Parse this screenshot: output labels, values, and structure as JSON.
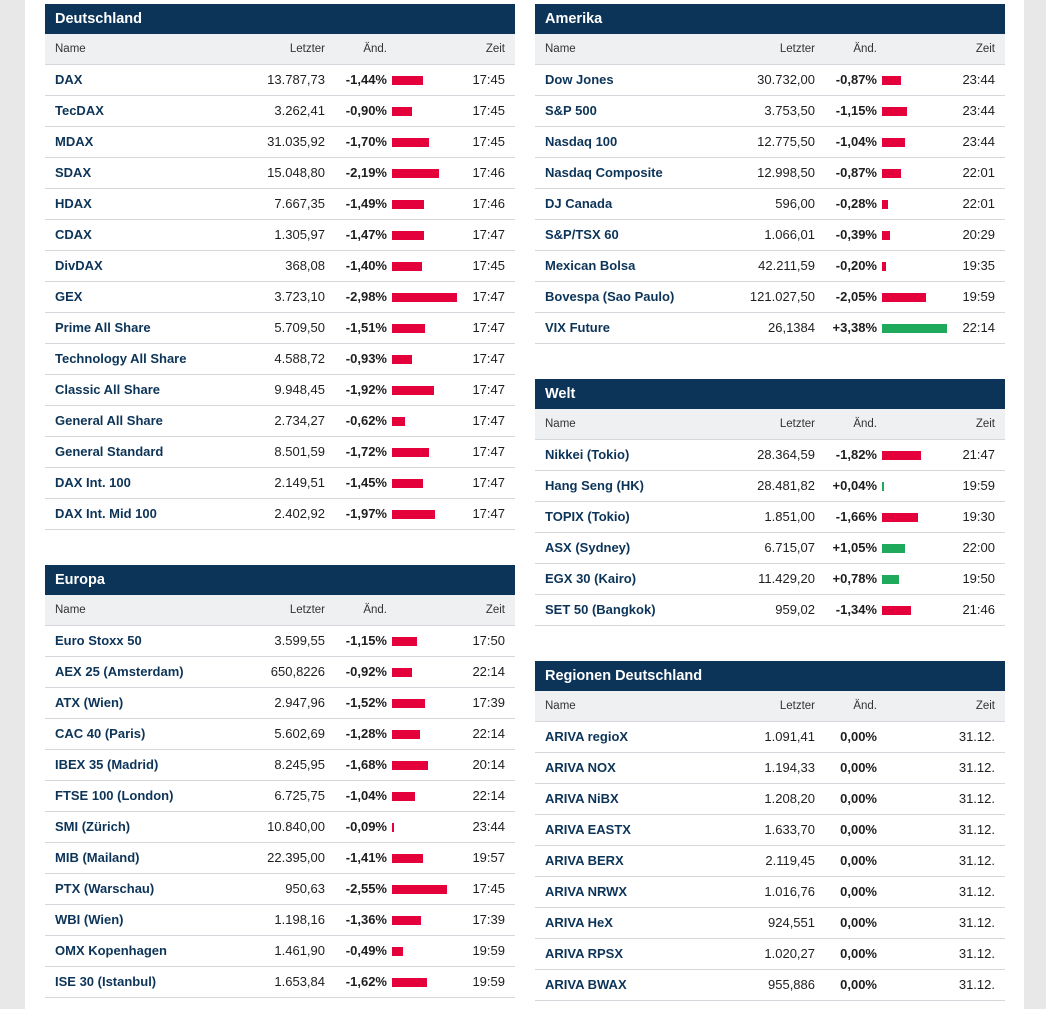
{
  "colors": {
    "header_bg": "#0c3458",
    "negative": "#e4003a",
    "positive": "#1faa5b",
    "link": "#0c3458"
  },
  "bar_scale_max_pct": 3.0,
  "panels": [
    {
      "id": "deutschland",
      "title": "Deutschland",
      "columns": {
        "name": "Name",
        "last": "Letzter",
        "change": "Änd.",
        "time": "Zeit"
      },
      "rows": [
        {
          "name": "DAX",
          "last": "13.787,73",
          "change": "-1,44%",
          "pct": -1.44,
          "time": "17:45"
        },
        {
          "name": "TecDAX",
          "last": "3.262,41",
          "change": "-0,90%",
          "pct": -0.9,
          "time": "17:45"
        },
        {
          "name": "MDAX",
          "last": "31.035,92",
          "change": "-1,70%",
          "pct": -1.7,
          "time": "17:45"
        },
        {
          "name": "SDAX",
          "last": "15.048,80",
          "change": "-2,19%",
          "pct": -2.19,
          "time": "17:46"
        },
        {
          "name": "HDAX",
          "last": "7.667,35",
          "change": "-1,49%",
          "pct": -1.49,
          "time": "17:46"
        },
        {
          "name": "CDAX",
          "last": "1.305,97",
          "change": "-1,47%",
          "pct": -1.47,
          "time": "17:47"
        },
        {
          "name": "DivDAX",
          "last": "368,08",
          "change": "-1,40%",
          "pct": -1.4,
          "time": "17:45"
        },
        {
          "name": "GEX",
          "last": "3.723,10",
          "change": "-2,98%",
          "pct": -2.98,
          "time": "17:47"
        },
        {
          "name": "Prime All Share",
          "last": "5.709,50",
          "change": "-1,51%",
          "pct": -1.51,
          "time": "17:47"
        },
        {
          "name": "Technology All Share",
          "last": "4.588,72",
          "change": "-0,93%",
          "pct": -0.93,
          "time": "17:47"
        },
        {
          "name": "Classic All Share",
          "last": "9.948,45",
          "change": "-1,92%",
          "pct": -1.92,
          "time": "17:47"
        },
        {
          "name": "General All Share",
          "last": "2.734,27",
          "change": "-0,62%",
          "pct": -0.62,
          "time": "17:47"
        },
        {
          "name": "General Standard",
          "last": "8.501,59",
          "change": "-1,72%",
          "pct": -1.72,
          "time": "17:47"
        },
        {
          "name": "DAX Int. 100",
          "last": "2.149,51",
          "change": "-1,45%",
          "pct": -1.45,
          "time": "17:47"
        },
        {
          "name": "DAX Int. Mid 100",
          "last": "2.402,92",
          "change": "-1,97%",
          "pct": -1.97,
          "time": "17:47"
        }
      ]
    },
    {
      "id": "europa",
      "title": "Europa",
      "columns": {
        "name": "Name",
        "last": "Letzter",
        "change": "Änd.",
        "time": "Zeit"
      },
      "rows": [
        {
          "name": "Euro Stoxx 50",
          "last": "3.599,55",
          "change": "-1,15%",
          "pct": -1.15,
          "time": "17:50"
        },
        {
          "name": "AEX 25 (Amsterdam)",
          "last": "650,8226",
          "change": "-0,92%",
          "pct": -0.92,
          "time": "22:14"
        },
        {
          "name": "ATX (Wien)",
          "last": "2.947,96",
          "change": "-1,52%",
          "pct": -1.52,
          "time": "17:39"
        },
        {
          "name": "CAC 40 (Paris)",
          "last": "5.602,69",
          "change": "-1,28%",
          "pct": -1.28,
          "time": "22:14"
        },
        {
          "name": "IBEX 35 (Madrid)",
          "last": "8.245,95",
          "change": "-1,68%",
          "pct": -1.68,
          "time": "20:14"
        },
        {
          "name": "FTSE 100 (London)",
          "last": "6.725,75",
          "change": "-1,04%",
          "pct": -1.04,
          "time": "22:14"
        },
        {
          "name": "SMI (Zürich)",
          "last": "10.840,00",
          "change": "-0,09%",
          "pct": -0.09,
          "time": "23:44"
        },
        {
          "name": "MIB (Mailand)",
          "last": "22.395,00",
          "change": "-1,41%",
          "pct": -1.41,
          "time": "19:57"
        },
        {
          "name": "PTX (Warschau)",
          "last": "950,63",
          "change": "-2,55%",
          "pct": -2.55,
          "time": "17:45"
        },
        {
          "name": "WBI (Wien)",
          "last": "1.198,16",
          "change": "-1,36%",
          "pct": -1.36,
          "time": "17:39"
        },
        {
          "name": "OMX Kopenhagen",
          "last": "1.461,90",
          "change": "-0,49%",
          "pct": -0.49,
          "time": "19:59"
        },
        {
          "name": "ISE 30 (Istanbul)",
          "last": "1.653,84",
          "change": "-1,62%",
          "pct": -1.62,
          "time": "19:59"
        }
      ]
    },
    {
      "id": "amerika",
      "title": "Amerika",
      "columns": {
        "name": "Name",
        "last": "Letzter",
        "change": "Änd.",
        "time": "Zeit"
      },
      "rows": [
        {
          "name": "Dow Jones",
          "last": "30.732,00",
          "change": "-0,87%",
          "pct": -0.87,
          "time": "23:44"
        },
        {
          "name": "S&P 500",
          "last": "3.753,50",
          "change": "-1,15%",
          "pct": -1.15,
          "time": "23:44"
        },
        {
          "name": "Nasdaq 100",
          "last": "12.775,50",
          "change": "-1,04%",
          "pct": -1.04,
          "time": "23:44"
        },
        {
          "name": "Nasdaq Composite",
          "last": "12.998,50",
          "change": "-0,87%",
          "pct": -0.87,
          "time": "22:01"
        },
        {
          "name": "DJ Canada",
          "last": "596,00",
          "change": "-0,28%",
          "pct": -0.28,
          "time": "22:01"
        },
        {
          "name": "S&P/TSX 60",
          "last": "1.066,01",
          "change": "-0,39%",
          "pct": -0.39,
          "time": "20:29"
        },
        {
          "name": "Mexican Bolsa",
          "last": "42.211,59",
          "change": "-0,20%",
          "pct": -0.2,
          "time": "19:35"
        },
        {
          "name": "Bovespa (Sao Paulo)",
          "last": "121.027,50",
          "change": "-2,05%",
          "pct": -2.05,
          "time": "19:59"
        },
        {
          "name": "VIX Future",
          "last": "26,1384",
          "change": "+3,38%",
          "pct": 3.38,
          "time": "22:14"
        }
      ]
    },
    {
      "id": "welt",
      "title": "Welt",
      "columns": {
        "name": "Name",
        "last": "Letzter",
        "change": "Änd.",
        "time": "Zeit"
      },
      "rows": [
        {
          "name": "Nikkei (Tokio)",
          "last": "28.364,59",
          "change": "-1,82%",
          "pct": -1.82,
          "time": "21:47"
        },
        {
          "name": "Hang Seng (HK)",
          "last": "28.481,82",
          "change": "+0,04%",
          "pct": 0.04,
          "time": "19:59"
        },
        {
          "name": "TOPIX (Tokio)",
          "last": "1.851,00",
          "change": "-1,66%",
          "pct": -1.66,
          "time": "19:30"
        },
        {
          "name": "ASX (Sydney)",
          "last": "6.715,07",
          "change": "+1,05%",
          "pct": 1.05,
          "time": "22:00"
        },
        {
          "name": "EGX 30 (Kairo)",
          "last": "11.429,20",
          "change": "+0,78%",
          "pct": 0.78,
          "time": "19:50"
        },
        {
          "name": "SET 50 (Bangkok)",
          "last": "959,02",
          "change": "-1,34%",
          "pct": -1.34,
          "time": "21:46"
        }
      ]
    },
    {
      "id": "regionen-deutschland",
      "title": "Regionen Deutschland",
      "columns": {
        "name": "Name",
        "last": "Letzter",
        "change": "Änd.",
        "time": "Zeit"
      },
      "rows": [
        {
          "name": "ARIVA regioX",
          "last": "1.091,41",
          "change": "0,00%",
          "pct": 0,
          "time": "31.12."
        },
        {
          "name": "ARIVA NOX",
          "last": "1.194,33",
          "change": "0,00%",
          "pct": 0,
          "time": "31.12."
        },
        {
          "name": "ARIVA NiBX",
          "last": "1.208,20",
          "change": "0,00%",
          "pct": 0,
          "time": "31.12."
        },
        {
          "name": "ARIVA EASTX",
          "last": "1.633,70",
          "change": "0,00%",
          "pct": 0,
          "time": "31.12."
        },
        {
          "name": "ARIVA BERX",
          "last": "2.119,45",
          "change": "0,00%",
          "pct": 0,
          "time": "31.12."
        },
        {
          "name": "ARIVA NRWX",
          "last": "1.016,76",
          "change": "0,00%",
          "pct": 0,
          "time": "31.12."
        },
        {
          "name": "ARIVA HeX",
          "last": "924,551",
          "change": "0,00%",
          "pct": 0,
          "time": "31.12."
        },
        {
          "name": "ARIVA RPSX",
          "last": "1.020,27",
          "change": "0,00%",
          "pct": 0,
          "time": "31.12."
        },
        {
          "name": "ARIVA BWAX",
          "last": "955,886",
          "change": "0,00%",
          "pct": 0,
          "time": "31.12."
        }
      ]
    }
  ]
}
